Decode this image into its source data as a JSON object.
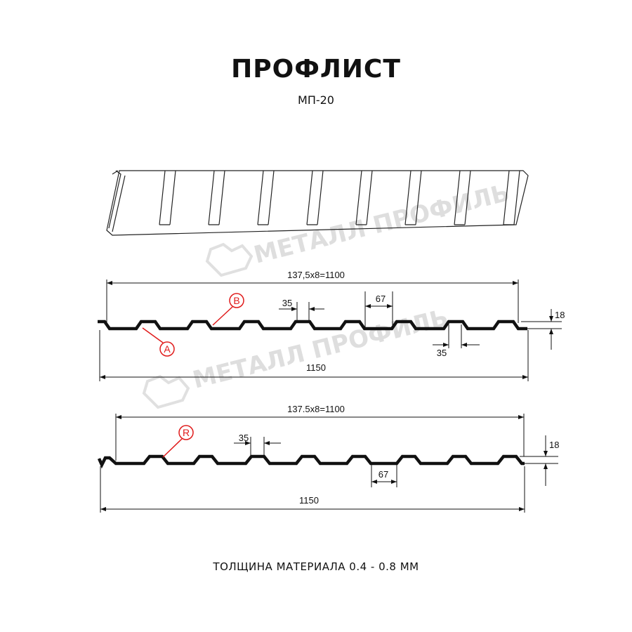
{
  "header": {
    "title": "ПРОФЛИСТ",
    "subtitle": "МП-20"
  },
  "watermark": "МЕТАЛЛ ПРОФИЛЬ",
  "profile_top": {
    "overall_label": "137,5x8=1100",
    "total_label": "1150",
    "rib_top_label": "35",
    "rib_bottom_label": "35",
    "valley_label": "67",
    "height_label": "18",
    "callout_a": "A",
    "callout_b": "B"
  },
  "profile_bottom": {
    "overall_label": "137.5x8=1100",
    "total_label": "1150",
    "rib_top_label": "35",
    "valley_label": "67",
    "height_label": "18",
    "callout_r": "R"
  },
  "footer": {
    "thickness": "ТОЛЩИНА МАТЕРИАЛА 0.4 - 0.8 ММ"
  },
  "colors": {
    "line": "#111111",
    "callout": "#e01b1b"
  }
}
